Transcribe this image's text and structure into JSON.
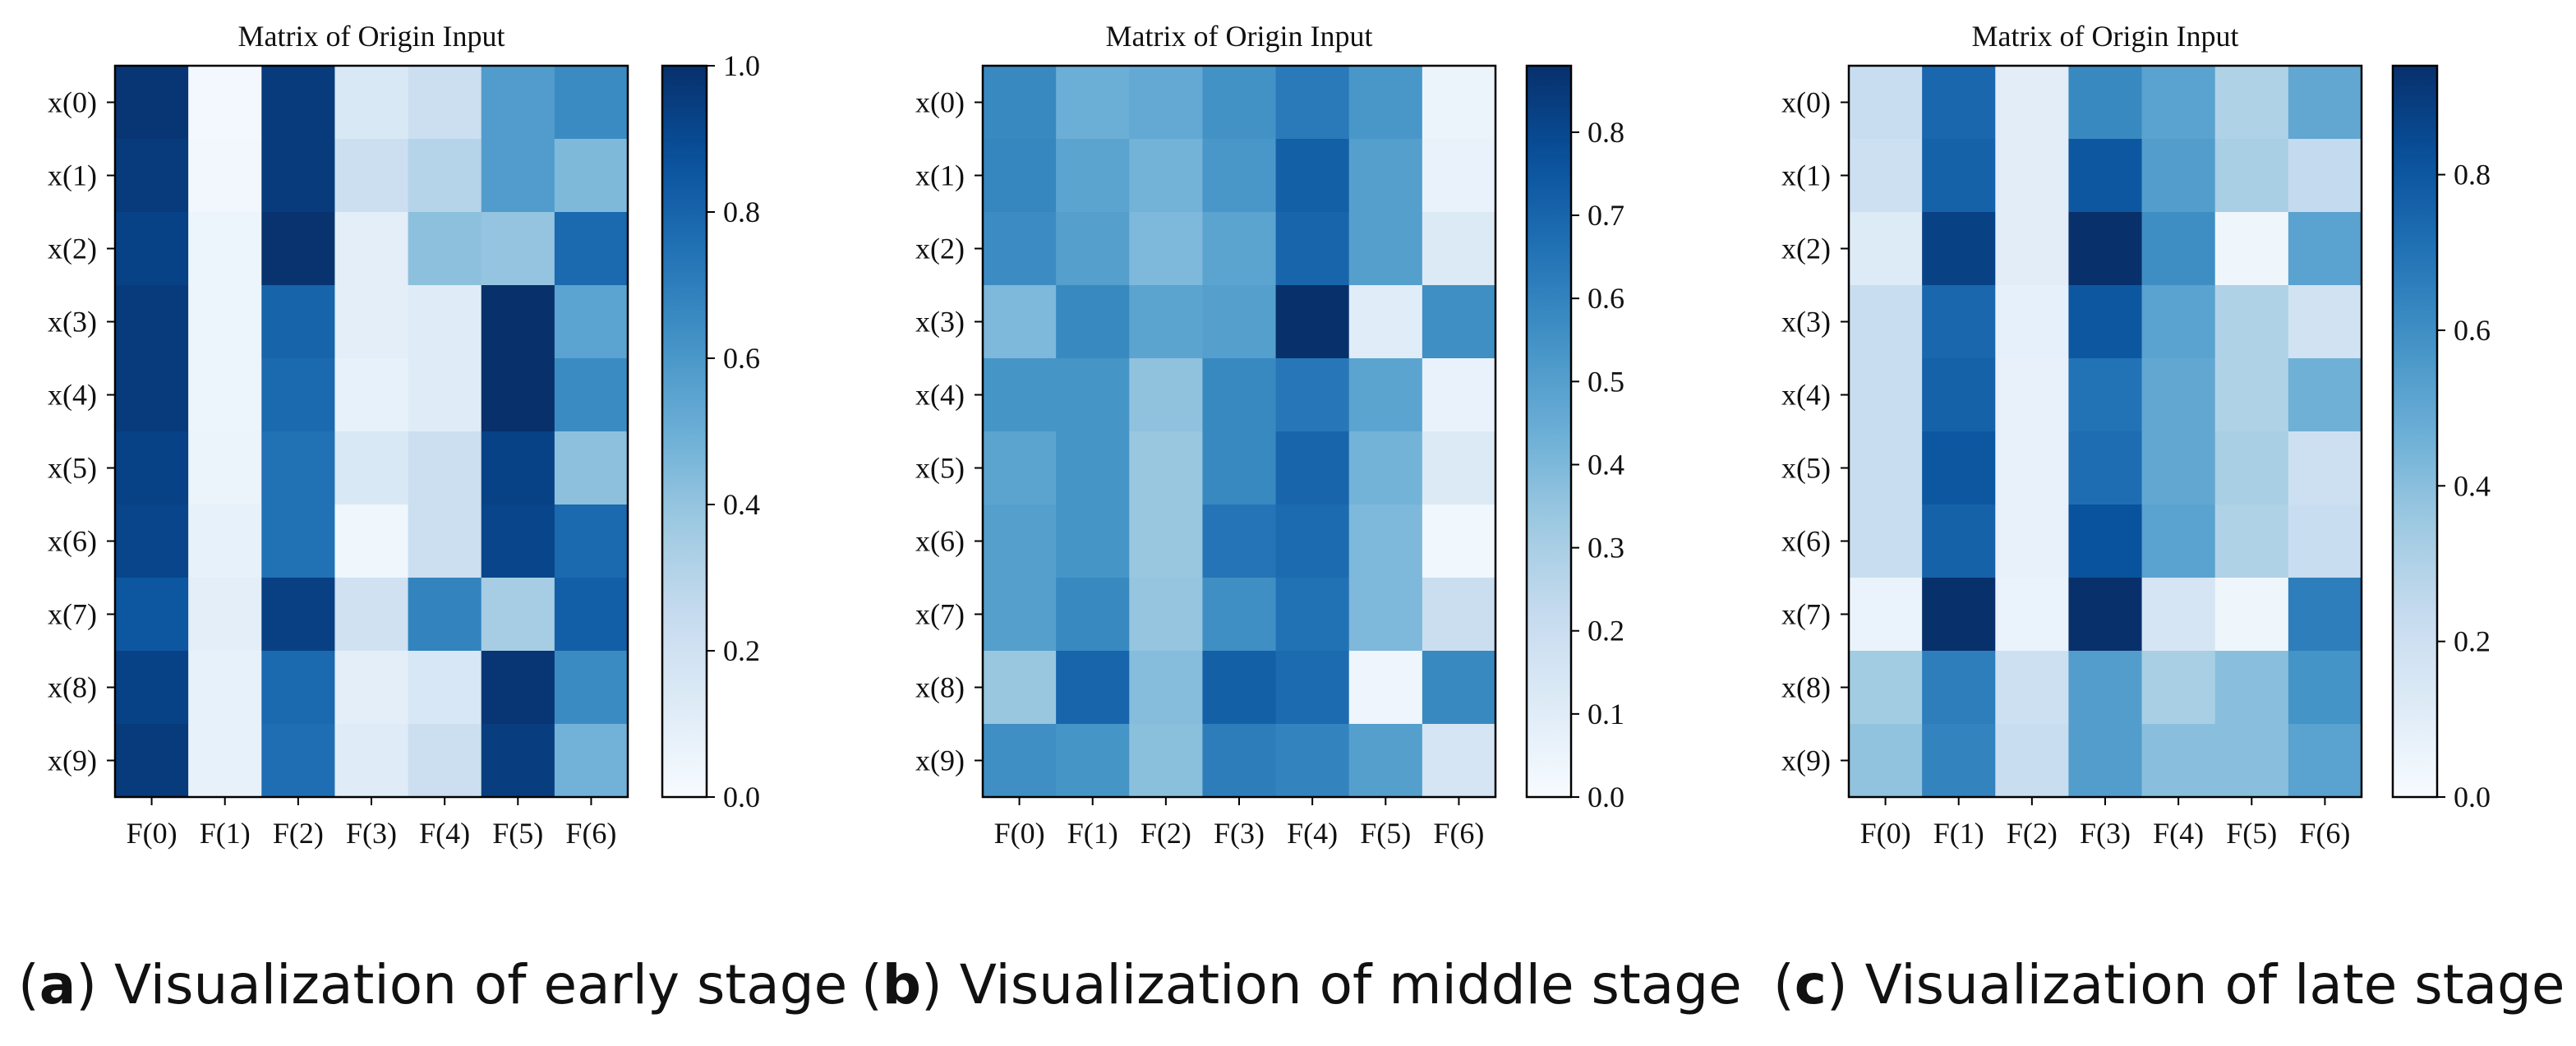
{
  "chart_data": [
    {
      "type": "heatmap",
      "panel": "a",
      "title": "Matrix of Origin Input",
      "columns": [
        "F(0)",
        "F(1)",
        "F(2)",
        "F(3)",
        "F(4)",
        "F(5)",
        "F(6)"
      ],
      "rows": [
        "x(0)",
        "x(1)",
        "x(2)",
        "x(3)",
        "x(4)",
        "x(5)",
        "x(6)",
        "x(7)",
        "x(8)",
        "x(9)"
      ],
      "values": [
        [
          0.98,
          0.02,
          0.96,
          0.15,
          0.22,
          0.58,
          0.65
        ],
        [
          0.96,
          0.03,
          0.96,
          0.22,
          0.3,
          0.58,
          0.45
        ],
        [
          0.93,
          0.05,
          0.99,
          0.1,
          0.42,
          0.4,
          0.78
        ],
        [
          0.96,
          0.05,
          0.8,
          0.1,
          0.12,
          1.0,
          0.55
        ],
        [
          0.96,
          0.05,
          0.78,
          0.08,
          0.12,
          1.0,
          0.65
        ],
        [
          0.93,
          0.06,
          0.75,
          0.15,
          0.22,
          0.93,
          0.42
        ],
        [
          0.92,
          0.08,
          0.75,
          0.04,
          0.22,
          0.92,
          0.78
        ],
        [
          0.85,
          0.1,
          0.94,
          0.2,
          0.68,
          0.35,
          0.82
        ],
        [
          0.93,
          0.08,
          0.78,
          0.1,
          0.16,
          0.98,
          0.65
        ],
        [
          0.96,
          0.08,
          0.76,
          0.12,
          0.22,
          0.95,
          0.48
        ]
      ],
      "vmin": 0,
      "vmax": 1.0,
      "colorbar_ticks": [
        "0.0",
        "0.2",
        "0.4",
        "0.6",
        "0.8",
        "1.0"
      ],
      "colorbar_tick_values": [
        0,
        0.2,
        0.4,
        0.6,
        0.8,
        1.0
      ],
      "cmap": "Blues",
      "caption_letter": "a",
      "caption_text": "Visualization of early stage"
    },
    {
      "type": "heatmap",
      "panel": "b",
      "title": "Matrix of Origin Input",
      "columns": [
        "F(0)",
        "F(1)",
        "F(2)",
        "F(3)",
        "F(4)",
        "F(5)",
        "F(6)"
      ],
      "rows": [
        "x(0)",
        "x(1)",
        "x(2)",
        "x(3)",
        "x(4)",
        "x(5)",
        "x(6)",
        "x(7)",
        "x(8)",
        "x(9)"
      ],
      "values": [
        [
          0.58,
          0.44,
          0.46,
          0.55,
          0.63,
          0.53,
          0.05
        ],
        [
          0.59,
          0.48,
          0.42,
          0.53,
          0.72,
          0.5,
          0.06
        ],
        [
          0.57,
          0.5,
          0.4,
          0.48,
          0.7,
          0.5,
          0.12
        ],
        [
          0.4,
          0.58,
          0.48,
          0.5,
          0.88,
          0.1,
          0.56
        ],
        [
          0.54,
          0.54,
          0.36,
          0.58,
          0.64,
          0.48,
          0.06
        ],
        [
          0.48,
          0.54,
          0.34,
          0.58,
          0.7,
          0.42,
          0.12
        ],
        [
          0.5,
          0.54,
          0.34,
          0.65,
          0.68,
          0.4,
          0.03
        ],
        [
          0.5,
          0.58,
          0.35,
          0.56,
          0.66,
          0.4,
          0.2
        ],
        [
          0.34,
          0.7,
          0.38,
          0.72,
          0.68,
          0.04,
          0.58
        ],
        [
          0.56,
          0.54,
          0.37,
          0.62,
          0.6,
          0.5,
          0.15
        ]
      ],
      "vmin": 0,
      "vmax": 0.88,
      "colorbar_ticks": [
        "0.0",
        "0.1",
        "0.2",
        "0.3",
        "0.4",
        "0.5",
        "0.6",
        "0.7",
        "0.8"
      ],
      "colorbar_tick_values": [
        0,
        0.1,
        0.2,
        0.3,
        0.4,
        0.5,
        0.6,
        0.7,
        0.8
      ],
      "cmap": "Blues",
      "caption_letter": "b",
      "caption_text": "Visualization of middle stage"
    },
    {
      "type": "heatmap",
      "panel": "c",
      "title": "Matrix of Origin Input",
      "columns": [
        "F(0)",
        "F(1)",
        "F(2)",
        "F(3)",
        "F(4)",
        "F(5)",
        "F(6)"
      ],
      "rows": [
        "x(0)",
        "x(1)",
        "x(2)",
        "x(3)",
        "x(4)",
        "x(5)",
        "x(6)",
        "x(7)",
        "x(8)",
        "x(9)"
      ],
      "values": [
        [
          0.22,
          0.74,
          0.1,
          0.62,
          0.52,
          0.3,
          0.5
        ],
        [
          0.2,
          0.76,
          0.1,
          0.8,
          0.54,
          0.32,
          0.24
        ],
        [
          0.12,
          0.88,
          0.1,
          0.94,
          0.6,
          0.04,
          0.52
        ],
        [
          0.22,
          0.74,
          0.08,
          0.8,
          0.52,
          0.3,
          0.18
        ],
        [
          0.22,
          0.76,
          0.07,
          0.7,
          0.5,
          0.3,
          0.46
        ],
        [
          0.22,
          0.8,
          0.07,
          0.72,
          0.5,
          0.32,
          0.2
        ],
        [
          0.22,
          0.76,
          0.07,
          0.82,
          0.52,
          0.3,
          0.22
        ],
        [
          0.06,
          0.94,
          0.06,
          0.94,
          0.16,
          0.04,
          0.66
        ],
        [
          0.34,
          0.66,
          0.2,
          0.54,
          0.32,
          0.4,
          0.58
        ],
        [
          0.38,
          0.64,
          0.22,
          0.54,
          0.4,
          0.4,
          0.52
        ]
      ],
      "vmin": 0,
      "vmax": 0.94,
      "colorbar_ticks": [
        "0.0",
        "0.2",
        "0.4",
        "0.6",
        "0.8"
      ],
      "colorbar_tick_values": [
        0,
        0.2,
        0.4,
        0.6,
        0.8
      ],
      "cmap": "Blues",
      "caption_letter": "c",
      "caption_text": "Visualization of late stage"
    }
  ]
}
